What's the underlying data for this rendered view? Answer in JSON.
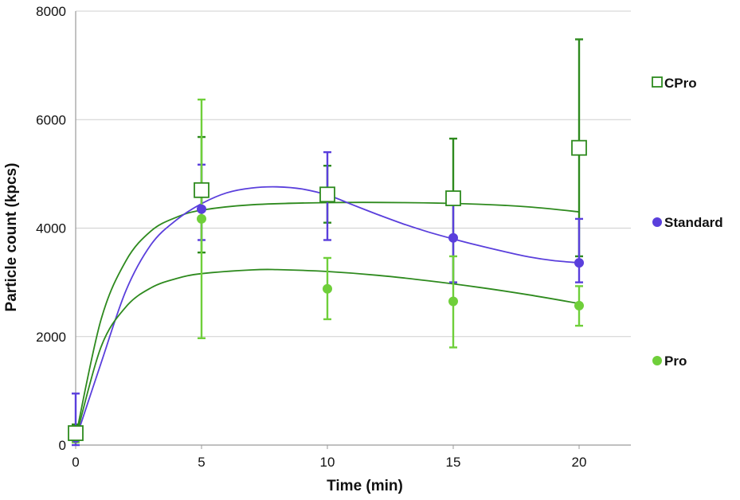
{
  "chart_data": {
    "type": "scatter",
    "xlabel": "Time (min)",
    "ylabel": "Particle count (kpcs)",
    "xlim": [
      0,
      22
    ],
    "ylim": [
      0,
      8000
    ],
    "xticks": [
      0,
      5,
      10,
      15,
      20
    ],
    "yticks": [
      0,
      2000,
      4000,
      6000,
      8000
    ],
    "grid": "horizontal",
    "legend_position": "right",
    "series": [
      {
        "name": "CPro",
        "marker": "open-square",
        "color": "#2e8a1e",
        "points": [
          {
            "x": 0,
            "y": 220,
            "err_low": 200,
            "err_high": 380
          },
          {
            "x": 5,
            "y": 4700,
            "err_low": 3550,
            "err_high": 5680
          },
          {
            "x": 10,
            "y": 4620,
            "err_low": 4100,
            "err_high": 5150
          },
          {
            "x": 15,
            "y": 4550,
            "err_low": 3000,
            "err_high": 5650
          },
          {
            "x": 20,
            "y": 5480,
            "err_low": 3480,
            "err_high": 7480
          }
        ],
        "fit": [
          [
            0,
            150
          ],
          [
            1,
            2300
          ],
          [
            2,
            3400
          ],
          [
            3,
            3950
          ],
          [
            4,
            4200
          ],
          [
            5,
            4330
          ],
          [
            7,
            4430
          ],
          [
            10,
            4470
          ],
          [
            13,
            4470
          ],
          [
            16,
            4440
          ],
          [
            18,
            4390
          ],
          [
            20,
            4300
          ]
        ]
      },
      {
        "name": "Standard",
        "marker": "filled-circle",
        "color": "#5a3fdc",
        "points": [
          {
            "x": 0,
            "y": 130,
            "err_low": 0,
            "err_high": 950
          },
          {
            "x": 5,
            "y": 4350,
            "err_low": 3780,
            "err_high": 5170
          },
          {
            "x": 10,
            "y": 4600,
            "err_low": 3780,
            "err_high": 5400
          },
          {
            "x": 15,
            "y": 3820,
            "err_low": 3000,
            "err_high": 4500
          },
          {
            "x": 20,
            "y": 3360,
            "err_low": 3000,
            "err_high": 4170
          }
        ],
        "fit": [
          [
            0,
            100
          ],
          [
            1,
            1500
          ],
          [
            2,
            2850
          ],
          [
            3,
            3700
          ],
          [
            4,
            4150
          ],
          [
            5,
            4450
          ],
          [
            6,
            4650
          ],
          [
            7,
            4740
          ],
          [
            8,
            4760
          ],
          [
            9,
            4720
          ],
          [
            10,
            4610
          ],
          [
            11,
            4430
          ],
          [
            12,
            4250
          ],
          [
            13,
            4080
          ],
          [
            14,
            3930
          ],
          [
            15,
            3800
          ],
          [
            16,
            3680
          ],
          [
            17,
            3570
          ],
          [
            18,
            3470
          ],
          [
            19,
            3400
          ],
          [
            20,
            3360
          ]
        ]
      },
      {
        "name": "Pro",
        "marker": "filled-circle",
        "color": "#6fcf3a",
        "points": [
          {
            "x": 0,
            "y": 120,
            "err_low": 50,
            "err_high": 300
          },
          {
            "x": 5,
            "y": 4170,
            "err_low": 1970,
            "err_high": 6370
          },
          {
            "x": 10,
            "y": 2880,
            "err_low": 2320,
            "err_high": 3450
          },
          {
            "x": 15,
            "y": 2650,
            "err_low": 1800,
            "err_high": 3480
          },
          {
            "x": 20,
            "y": 2570,
            "err_low": 2200,
            "err_high": 2930
          }
        ],
        "fit": [
          [
            0,
            120
          ],
          [
            1,
            1800
          ],
          [
            2,
            2550
          ],
          [
            3,
            2900
          ],
          [
            4,
            3070
          ],
          [
            5,
            3160
          ],
          [
            7,
            3230
          ],
          [
            8,
            3235
          ],
          [
            10,
            3200
          ],
          [
            12,
            3130
          ],
          [
            14,
            3030
          ],
          [
            16,
            2910
          ],
          [
            18,
            2770
          ],
          [
            20,
            2610
          ]
        ]
      }
    ]
  }
}
